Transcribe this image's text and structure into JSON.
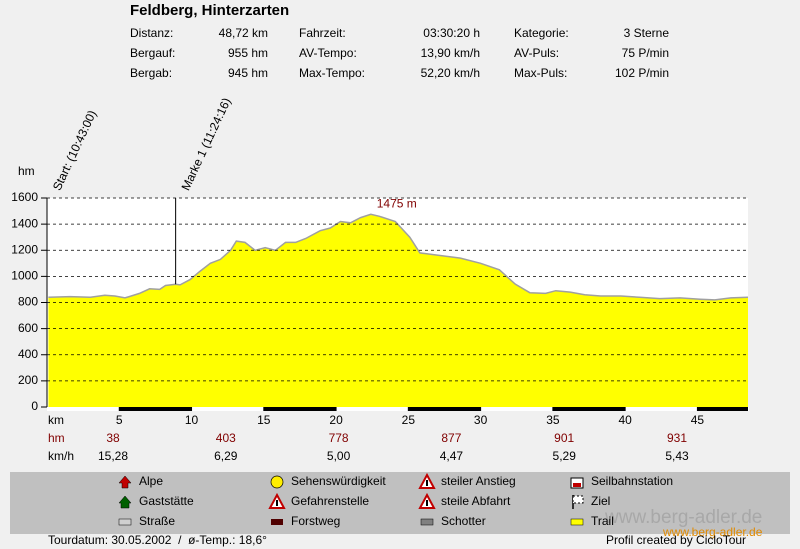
{
  "header": {
    "title": "Feldberg, Hinterzarten",
    "stats": [
      [
        "Distanz:",
        "48,72 km",
        "Fahrzeit:",
        "03:30:20 h",
        "Kategorie:",
        "3 Sterne"
      ],
      [
        "Bergauf:",
        "955 hm",
        "AV-Tempo:",
        "13,90 km/h",
        "AV-Puls:",
        "75 P/min"
      ],
      [
        "Bergab:",
        "945 hm",
        "Max-Tempo:",
        "52,20 km/h",
        "Max-Puls:",
        "102 P/min"
      ]
    ]
  },
  "chart_data": {
    "type": "area",
    "x_label": "km",
    "y_label": "hm",
    "x": [
      0.1,
      1.6,
      3.0,
      4.0,
      4.7,
      5.4,
      6.4,
      7.1,
      7.8,
      8.2,
      8.9,
      9.2,
      9.9,
      10.6,
      11.3,
      12.0,
      12.7,
      13.1,
      13.7,
      14.4,
      15.1,
      15.8,
      16.5,
      17.2,
      17.9,
      18.9,
      19.6,
      20.3,
      21.0,
      21.7,
      22.4,
      23.0,
      24.1,
      25.1,
      25.8,
      27.2,
      28.6,
      30.0,
      31.3,
      32.4,
      33.4,
      34.5,
      35.2,
      36.2,
      37.2,
      38.3,
      39.7,
      41.0,
      42.4,
      43.8,
      45.2,
      46.2,
      47.3,
      48.5
    ],
    "values": [
      840,
      845,
      840,
      855,
      850,
      835,
      870,
      905,
      900,
      930,
      940,
      935,
      975,
      1040,
      1100,
      1130,
      1200,
      1270,
      1260,
      1200,
      1220,
      1200,
      1260,
      1260,
      1290,
      1350,
      1370,
      1420,
      1410,
      1450,
      1475,
      1460,
      1420,
      1300,
      1180,
      1160,
      1140,
      1100,
      1050,
      940,
      875,
      870,
      890,
      880,
      860,
      850,
      850,
      840,
      830,
      835,
      825,
      820,
      835,
      840
    ],
    "color": "#ffff00",
    "line_color": "#a0a0a0",
    "xlim": [
      0,
      48.5
    ],
    "ylim": [
      0,
      1600
    ],
    "xticks": [
      5,
      10,
      15,
      20,
      25,
      30,
      35,
      40,
      45
    ],
    "yticks": [
      0,
      200,
      400,
      600,
      800,
      1000,
      1200,
      1400,
      1600
    ],
    "grid": true,
    "markers": [
      {
        "label": "Start: (10:43:00)",
        "x": 0
      },
      {
        "label": "Marke 1 (11:24:16)",
        "x": 8.9
      }
    ],
    "peak": {
      "label": "1475 m",
      "x": 22.4,
      "y": 1475
    }
  },
  "segments": {
    "hm_label": "hm",
    "kmh_label": "km/h",
    "hm": [
      38,
      403,
      778,
      877,
      901,
      931
    ],
    "kmh": [
      "15,28",
      "6,29",
      "5,00",
      "4,47",
      "5,29",
      "5,43"
    ]
  },
  "legend": [
    "Alpe",
    "Gaststätte",
    "Straße",
    "Sehenswürdigkeit",
    "Gefahrenstelle",
    "Forstweg",
    "steiler Anstieg",
    "steile Abfahrt",
    "Schotter",
    "Seilbahnstation",
    "Ziel",
    "Trail"
  ],
  "footer": {
    "left": "Tourdatum: 30.05.2002  /  ø-Temp.: 18,6°",
    "right": "Profil created by CicloTour",
    "watermark": "www.berg-adler.de"
  }
}
